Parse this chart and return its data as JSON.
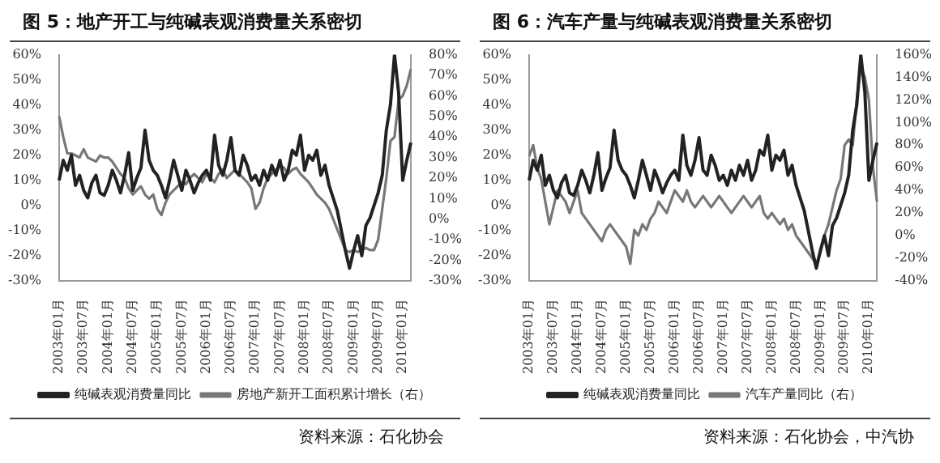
{
  "chart_data": [
    {
      "type": "line",
      "title": "图 5：地产开工与纯碱表观消费量关系密切",
      "categories": [
        "2003年01月",
        null,
        null,
        null,
        null,
        null,
        "2003年07月",
        null,
        null,
        null,
        null,
        null,
        "2004年01月",
        null,
        null,
        null,
        null,
        null,
        "2004年07月",
        null,
        null,
        null,
        null,
        null,
        "2005年01月",
        null,
        null,
        null,
        null,
        null,
        "2005年07月",
        null,
        null,
        null,
        null,
        null,
        "2006年01月",
        null,
        null,
        null,
        null,
        null,
        "2006年07月",
        null,
        null,
        null,
        null,
        null,
        "2007年01月",
        null,
        null,
        null,
        null,
        null,
        "2007年07月",
        null,
        null,
        null,
        null,
        null,
        "2008年01月",
        null,
        null,
        null,
        null,
        null,
        "2008年07月",
        null,
        null,
        null,
        null,
        null,
        "2009年01月",
        null,
        null,
        null,
        null,
        null,
        "2009年07月",
        null,
        null,
        null,
        null,
        null,
        "2010年01月",
        null,
        null
      ],
      "series": [
        {
          "name": "纯碱表观消费量同比",
          "color": "#222222",
          "values": [
            10,
            18,
            14,
            20,
            8,
            12,
            6,
            3,
            9,
            12,
            5,
            4,
            8,
            14,
            10,
            5,
            12,
            21,
            6,
            11,
            15,
            30,
            18,
            14,
            12,
            8,
            3,
            10,
            18,
            12,
            6,
            14,
            10,
            5,
            9,
            12,
            14,
            10,
            28,
            16,
            12,
            18,
            27,
            14,
            12,
            20,
            16,
            10,
            12,
            8,
            14,
            10,
            16,
            12,
            18,
            10,
            14,
            22,
            20,
            28,
            14,
            20,
            18,
            22,
            12,
            16,
            8,
            3,
            -2,
            -10,
            -18,
            -25,
            -18,
            -12,
            -20,
            -8,
            -5,
            0,
            5,
            12,
            30,
            40,
            60,
            45,
            10,
            18,
            25
          ]
        },
        {
          "name": "房地产新开工面积累计增长（右）",
          "color": "#777777",
          "axis": "y2",
          "values": [
            50,
            40,
            32,
            32,
            31,
            30,
            34,
            30,
            29,
            28,
            31,
            30,
            30,
            28,
            25,
            22,
            20,
            15,
            12,
            14,
            16,
            12,
            10,
            12,
            5,
            2,
            8,
            12,
            14,
            16,
            18,
            17,
            20,
            22,
            20,
            18,
            22,
            20,
            18,
            22,
            24,
            20,
            22,
            24,
            22,
            20,
            18,
            15,
            5,
            8,
            15,
            20,
            22,
            24,
            26,
            25,
            22,
            24,
            25,
            22,
            20,
            18,
            15,
            12,
            10,
            8,
            5,
            0,
            -5,
            -10,
            -15,
            -16,
            -15,
            -16,
            -15,
            -14,
            -15,
            -15,
            -10,
            5,
            20,
            38,
            40,
            58,
            60,
            65,
            73
          ]
        }
      ],
      "ylim": [
        -30,
        60
      ],
      "yticks": [
        {
          "value": -30,
          "label": "-30%"
        },
        {
          "value": -20,
          "label": "-20%"
        },
        {
          "value": -10,
          "label": "-10%"
        },
        {
          "value": 0,
          "label": "0%"
        },
        {
          "value": 10,
          "label": "10%"
        },
        {
          "value": 20,
          "label": "20%"
        },
        {
          "value": 30,
          "label": "30%"
        },
        {
          "value": 40,
          "label": "40%"
        },
        {
          "value": 50,
          "label": "50%"
        },
        {
          "value": 60,
          "label": "60%"
        }
      ],
      "y2lim": [
        -30,
        80
      ],
      "y2ticks": [
        {
          "value": -30,
          "label": "-30%"
        },
        {
          "value": -20,
          "label": "-20%"
        },
        {
          "value": -10,
          "label": "-10%"
        },
        {
          "value": 0,
          "label": "0%"
        },
        {
          "value": 10,
          "label": "10%"
        },
        {
          "value": 20,
          "label": "20%"
        },
        {
          "value": 30,
          "label": "30%"
        },
        {
          "value": 40,
          "label": "40%"
        },
        {
          "value": 50,
          "label": "50%"
        },
        {
          "value": 60,
          "label": "60%"
        },
        {
          "value": 70,
          "label": "70%"
        },
        {
          "value": 80,
          "label": "80%"
        }
      ],
      "legend": "bottom",
      "annotations": [
        "资料来源：石化协会"
      ]
    },
    {
      "type": "line",
      "title": "图 6：汽车产量与纯碱表观消费量关系密切",
      "categories": [
        "2003年01月",
        null,
        null,
        null,
        null,
        null,
        "2003年07月",
        null,
        null,
        null,
        null,
        null,
        "2004年01月",
        null,
        null,
        null,
        null,
        null,
        "2004年07月",
        null,
        null,
        null,
        null,
        null,
        "2005年01月",
        null,
        null,
        null,
        null,
        null,
        "2005年07月",
        null,
        null,
        null,
        null,
        null,
        "2006年01月",
        null,
        null,
        null,
        null,
        null,
        "2006年07月",
        null,
        null,
        null,
        null,
        null,
        "2007年01月",
        null,
        null,
        null,
        null,
        null,
        "2007年07月",
        null,
        null,
        null,
        null,
        null,
        "2008年01月",
        null,
        null,
        null,
        null,
        null,
        "2008年07月",
        null,
        null,
        null,
        null,
        null,
        "2009年01月",
        null,
        null,
        null,
        null,
        null,
        "2009年07月",
        null,
        null,
        null,
        null,
        null,
        "2010年01月",
        null,
        null
      ],
      "series": [
        {
          "name": "纯碱表观消费量同比",
          "color": "#222222",
          "values": [
            10,
            18,
            14,
            20,
            8,
            12,
            6,
            3,
            9,
            12,
            5,
            4,
            8,
            14,
            10,
            5,
            12,
            21,
            6,
            11,
            15,
            30,
            18,
            14,
            12,
            8,
            3,
            10,
            18,
            12,
            6,
            14,
            10,
            5,
            9,
            12,
            14,
            10,
            28,
            16,
            12,
            18,
            27,
            14,
            12,
            20,
            16,
            10,
            12,
            8,
            14,
            10,
            16,
            12,
            18,
            10,
            14,
            22,
            20,
            28,
            14,
            20,
            18,
            22,
            12,
            16,
            8,
            3,
            -2,
            -10,
            -18,
            -25,
            -18,
            -12,
            -20,
            -8,
            -5,
            0,
            5,
            12,
            30,
            40,
            60,
            45,
            10,
            18,
            25
          ]
        },
        {
          "name": "汽车产量同比（右）",
          "color": "#777777",
          "axis": "y2",
          "values": [
            70,
            80,
            60,
            50,
            30,
            10,
            25,
            40,
            35,
            30,
            20,
            30,
            40,
            20,
            15,
            10,
            5,
            0,
            -5,
            5,
            10,
            5,
            0,
            -5,
            -10,
            -25,
            5,
            0,
            10,
            5,
            15,
            20,
            30,
            25,
            20,
            30,
            40,
            35,
            30,
            40,
            30,
            25,
            30,
            35,
            30,
            25,
            30,
            35,
            30,
            25,
            20,
            25,
            30,
            35,
            30,
            25,
            30,
            35,
            20,
            15,
            20,
            15,
            10,
            15,
            5,
            10,
            0,
            -5,
            -10,
            -15,
            -20,
            -25,
            -15,
            0,
            10,
            25,
            40,
            50,
            80,
            85,
            80,
            120,
            150,
            140,
            120,
            60,
            30
          ]
        }
      ],
      "ylim": [
        -30,
        60
      ],
      "yticks": [
        {
          "value": -30,
          "label": "-30%"
        },
        {
          "value": -20,
          "label": "-20%"
        },
        {
          "value": -10,
          "label": "-10%"
        },
        {
          "value": 0,
          "label": "0%"
        },
        {
          "value": 10,
          "label": "10%"
        },
        {
          "value": 20,
          "label": "20%"
        },
        {
          "value": 30,
          "label": "30%"
        },
        {
          "value": 40,
          "label": "40%"
        },
        {
          "value": 50,
          "label": "50%"
        },
        {
          "value": 60,
          "label": "60%"
        }
      ],
      "y2lim": [
        -40,
        160
      ],
      "y2ticks": [
        {
          "value": -40,
          "label": "-40%"
        },
        {
          "value": -20,
          "label": "-20%"
        },
        {
          "value": 0,
          "label": "0%"
        },
        {
          "value": 20,
          "label": "20%"
        },
        {
          "value": 40,
          "label": "40%"
        },
        {
          "value": 60,
          "label": "60%"
        },
        {
          "value": 80,
          "label": "80%"
        },
        {
          "value": 100,
          "label": "100%"
        },
        {
          "value": 120,
          "label": "120%"
        },
        {
          "value": 140,
          "label": "140%"
        },
        {
          "value": 160,
          "label": "160%"
        }
      ],
      "legend": "bottom",
      "annotations": [
        "资料来源：石化协会，中汽协"
      ]
    }
  ]
}
